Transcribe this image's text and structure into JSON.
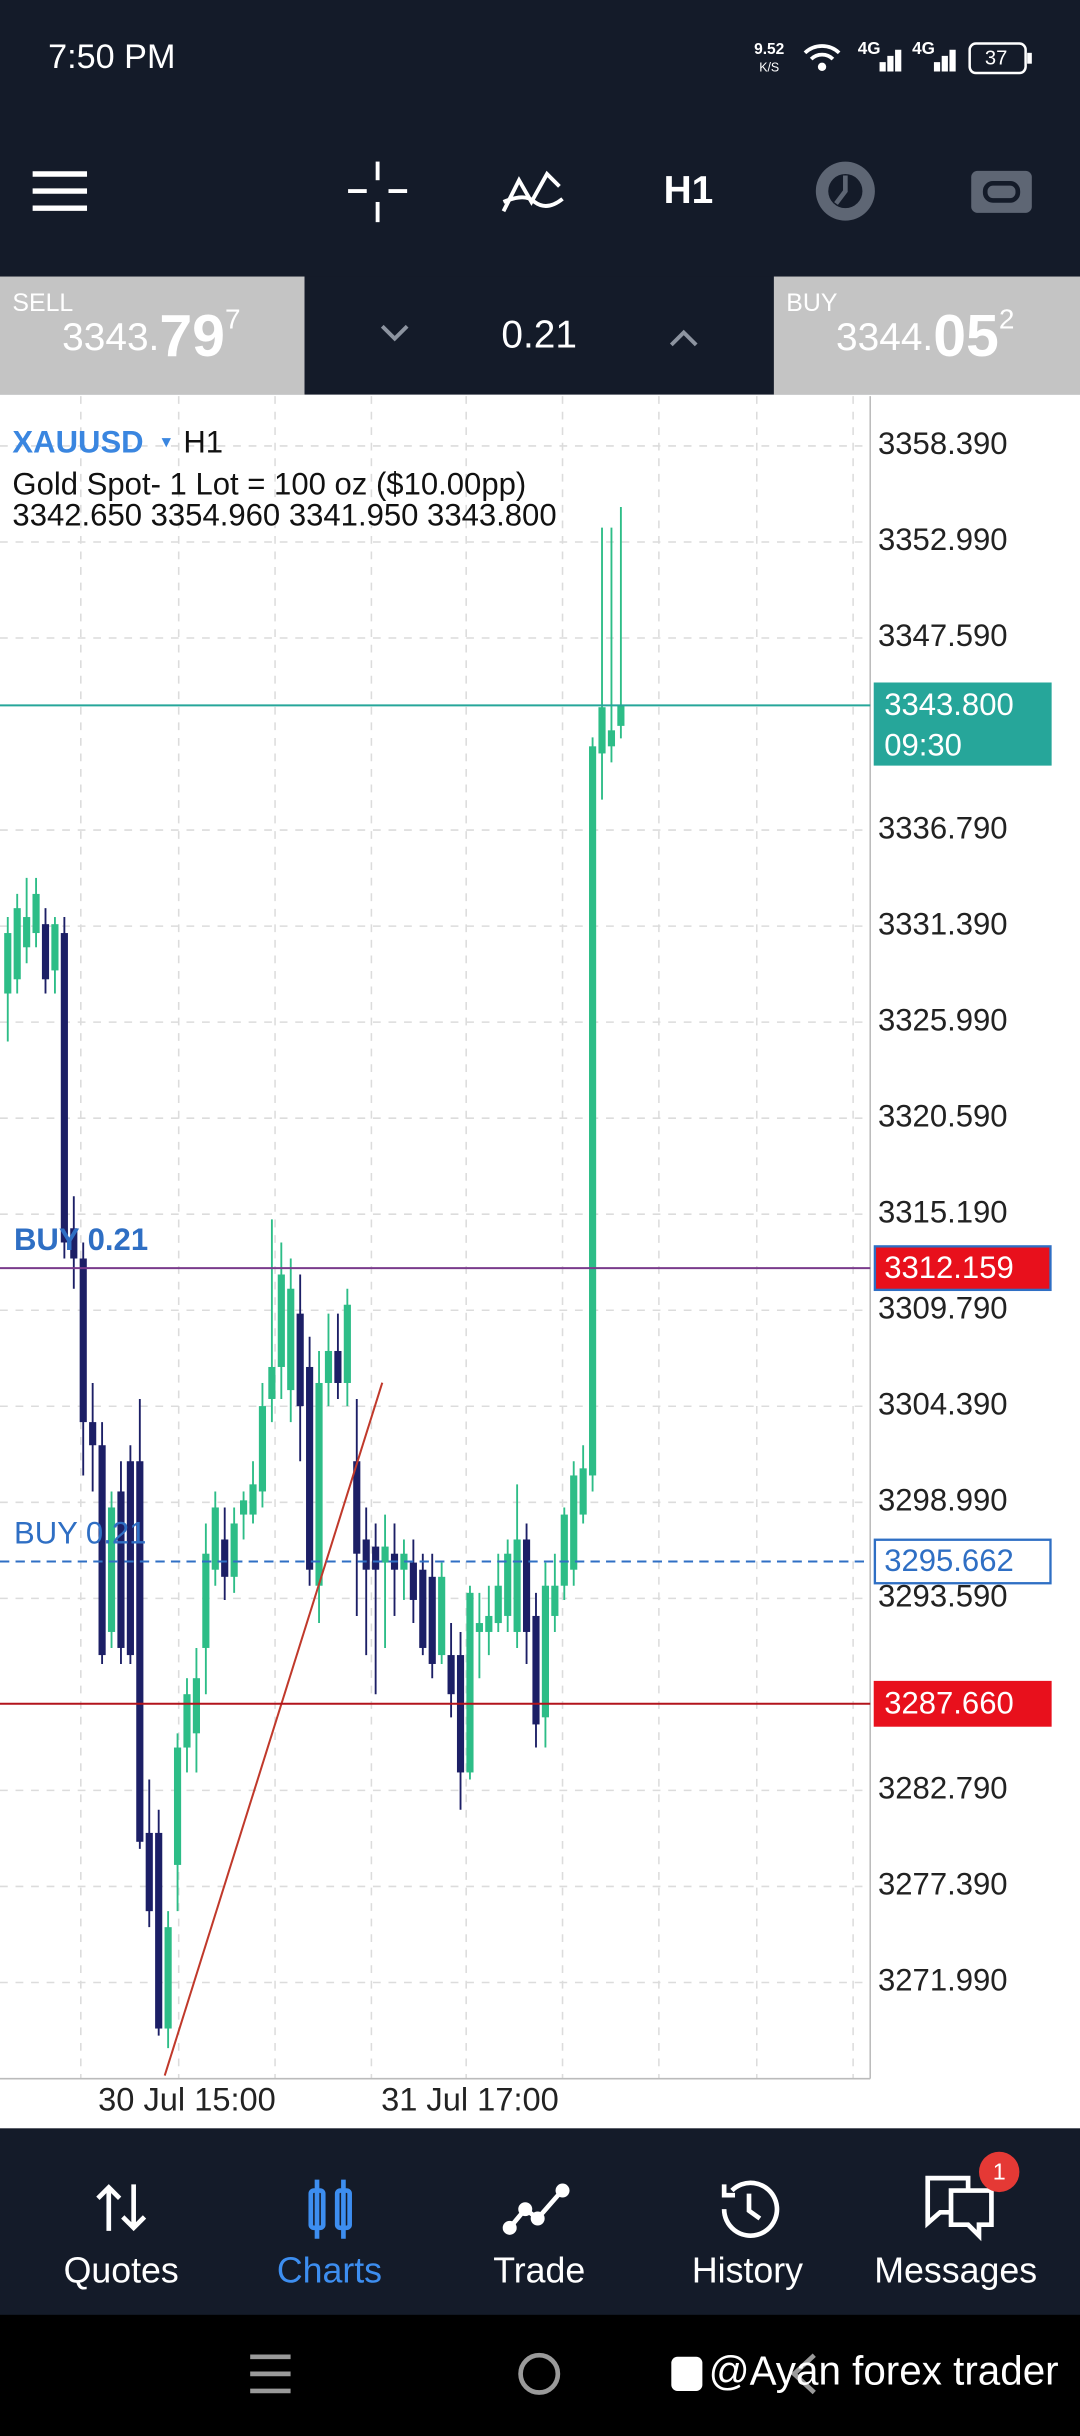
{
  "status_bar": {
    "time": "7:50 PM",
    "speed": "9.52",
    "speed_unit": "K/S",
    "net1": "4G",
    "net2": "4G",
    "battery": "37"
  },
  "toolbar": {
    "timeframe": "H1"
  },
  "quote": {
    "sell": {
      "label": "SELL",
      "price_main": "3343.",
      "price_big": "79",
      "price_sup": "7"
    },
    "lot": "0.21",
    "buy": {
      "label": "BUY",
      "price_main": "3344.",
      "price_big": "05",
      "price_sup": "2"
    }
  },
  "chart_data": {
    "type": "candlestick",
    "symbol": "XAUUSD",
    "timeframe": "H1",
    "description": "Gold Spot- 1 Lot = 100 oz ($10.00pp)",
    "ohlc_text": "3342.650 3354.960 3341.950 3343.800",
    "categories": [
      null,
      null,
      null,
      null,
      null,
      null,
      null,
      null,
      null,
      null,
      null,
      null,
      null,
      null,
      null,
      null,
      null,
      null,
      null,
      "30 Jul 15:00",
      null,
      null,
      null,
      null,
      null,
      null,
      null,
      null,
      null,
      null,
      null,
      null,
      null,
      null,
      null,
      null,
      null,
      null,
      null,
      null,
      null,
      null,
      null,
      null,
      null,
      null,
      null,
      null,
      null,
      "31 Jul 17:00",
      null,
      null,
      null,
      null,
      null,
      null,
      null,
      null,
      null,
      null,
      null,
      null,
      null,
      null,
      null,
      null
    ],
    "open": [
      3327.6,
      3328.4,
      3330.2,
      3331.0,
      3331.5,
      3328.9,
      3331.0,
      3314.4,
      3312.7,
      3303.5,
      3302.2,
      3291.7,
      3299.6,
      3301.3,
      3301.3,
      3280.4,
      3280.4,
      3269.4,
      3278.6,
      3285.2,
      3286.0,
      3290.8,
      3295.2,
      3296.9,
      3294.8,
      3298.3,
      3298.3,
      3299.6,
      3304.8,
      3306.6,
      3305.3,
      3309.6,
      3306.6,
      3294.3,
      3305.7,
      3307.5,
      3305.7,
      3301.3,
      3296.9,
      3296.5,
      3295.6,
      3296.1,
      3295.2,
      3295.6,
      3295.2,
      3294.8,
      3290.4,
      3290.4,
      3290.4,
      3283.8,
      3291.7,
      3291.7,
      3292.2,
      3292.6,
      3291.7,
      3296.9,
      3292.6,
      3286.9,
      3292.6,
      3294.3,
      3295.2,
      3298.3,
      3300.5,
      3341.1,
      3341.5,
      3342.65
    ],
    "high": [
      3331.9,
      3333.2,
      3334.1,
      3334.1,
      3332.4,
      3331.9,
      3331.9,
      3316.2,
      3313.6,
      3305.7,
      3303.5,
      3299.6,
      3301.3,
      3302.2,
      3304.8,
      3283.4,
      3281.7,
      3276.0,
      3286.0,
      3289.1,
      3290.8,
      3297.8,
      3299.6,
      3298.7,
      3298.7,
      3299.6,
      3301.3,
      3305.7,
      3314.9,
      3313.6,
      3312.7,
      3311.8,
      3308.3,
      3307.5,
      3309.6,
      3309.6,
      3311.0,
      3304.8,
      3298.7,
      3297.8,
      3298.3,
      3297.8,
      3296.9,
      3296.9,
      3296.1,
      3296.1,
      3295.6,
      3292.2,
      3291.7,
      3294.3,
      3293.9,
      3294.3,
      3296.1,
      3296.9,
      3300.0,
      3297.8,
      3293.9,
      3295.6,
      3296.1,
      3298.7,
      3301.3,
      3302.2,
      3342.0,
      3353.8,
      3353.8,
      3354.96
    ],
    "low": [
      3324.9,
      3327.6,
      3329.3,
      3330.2,
      3327.6,
      3327.6,
      3312.7,
      3311.0,
      3300.5,
      3299.6,
      3289.9,
      3290.8,
      3289.9,
      3289.9,
      3279.5,
      3275.1,
      3269.0,
      3268.3,
      3276.0,
      3283.8,
      3283.8,
      3288.2,
      3294.3,
      3293.5,
      3293.9,
      3296.9,
      3297.8,
      3298.7,
      3303.5,
      3304.8,
      3303.5,
      3301.3,
      3294.3,
      3292.2,
      3304.4,
      3304.8,
      3304.4,
      3292.6,
      3290.4,
      3288.2,
      3290.8,
      3292.6,
      3293.5,
      3292.2,
      3290.4,
      3289.1,
      3289.9,
      3286.9,
      3281.7,
      3283.4,
      3289.1,
      3290.4,
      3291.7,
      3291.7,
      3290.8,
      3289.9,
      3285.2,
      3285.2,
      3291.7,
      3293.5,
      3294.3,
      3297.8,
      3299.6,
      3338.5,
      3340.6,
      3341.95
    ],
    "close": [
      3331.0,
      3332.4,
      3331.9,
      3333.2,
      3328.4,
      3331.5,
      3313.6,
      3312.7,
      3303.5,
      3302.2,
      3290.4,
      3298.7,
      3290.8,
      3290.4,
      3279.9,
      3276.0,
      3269.4,
      3275.1,
      3285.2,
      3288.2,
      3289.1,
      3296.1,
      3298.7,
      3294.8,
      3297.8,
      3299.1,
      3300.0,
      3304.4,
      3306.6,
      3311.8,
      3311.0,
      3304.4,
      3295.2,
      3305.7,
      3307.5,
      3305.7,
      3310.1,
      3296.1,
      3295.2,
      3295.2,
      3296.5,
      3295.2,
      3296.1,
      3293.5,
      3290.8,
      3289.9,
      3294.8,
      3288.2,
      3283.8,
      3293.9,
      3292.2,
      3292.6,
      3294.3,
      3296.1,
      3296.9,
      3291.7,
      3286.5,
      3294.3,
      3294.3,
      3298.3,
      3300.5,
      3300.9,
      3341.5,
      3343.7,
      3342.4,
      3343.8
    ],
    "up_color": "#2dbd87",
    "down_color": "#1c1f66",
    "ylim": [
      3266.58,
      3361.19
    ],
    "yticks": [
      {
        "value": 3358.39,
        "label": "3358.390"
      },
      {
        "value": 3352.99,
        "label": "3352.990"
      },
      {
        "value": 3347.59,
        "label": "3347.590"
      },
      {
        "value": 3336.79,
        "label": "3336.790"
      },
      {
        "value": 3331.39,
        "label": "3331.390"
      },
      {
        "value": 3325.99,
        "label": "3325.990"
      },
      {
        "value": 3320.59,
        "label": "3320.590"
      },
      {
        "value": 3315.19,
        "label": "3315.190"
      },
      {
        "value": 3309.79,
        "label": "3309.790"
      },
      {
        "value": 3304.39,
        "label": "3304.390"
      },
      {
        "value": 3298.99,
        "label": "3298.990"
      },
      {
        "value": 3293.59,
        "label": "3293.590"
      },
      {
        "value": 3282.79,
        "label": "3282.790"
      },
      {
        "value": 3277.39,
        "label": "3277.390"
      },
      {
        "value": 3271.99,
        "label": "3271.990"
      }
    ],
    "grid": true,
    "price_lines": [
      {
        "value": 3343.8,
        "label": "3343.800",
        "time": "09:30",
        "color": "#26a69a",
        "line_color": "#26a69a",
        "box": "filled",
        "dash": false
      },
      {
        "value": 3312.159,
        "label": "3312.159",
        "order": "BUY 0.21",
        "color": "#e8101c",
        "line_color": "#7a3b8c",
        "box": "filled",
        "dash": false
      },
      {
        "value": 3295.662,
        "label": "3295.662",
        "order": "BUY 0.21",
        "color": "#2f6fc4",
        "line_color": "#2f6fc4",
        "box": "outline",
        "dash": true
      },
      {
        "value": 3287.66,
        "label": "3287.660",
        "color": "#e8101c",
        "line_color": "#b3141c",
        "box": "filled",
        "dash": false
      }
    ]
  },
  "nav": {
    "items": [
      "Quotes",
      "Charts",
      "Trade",
      "History",
      "Messages"
    ],
    "active": 1,
    "badge": "1"
  },
  "watermark": "@Ayan forex trader"
}
